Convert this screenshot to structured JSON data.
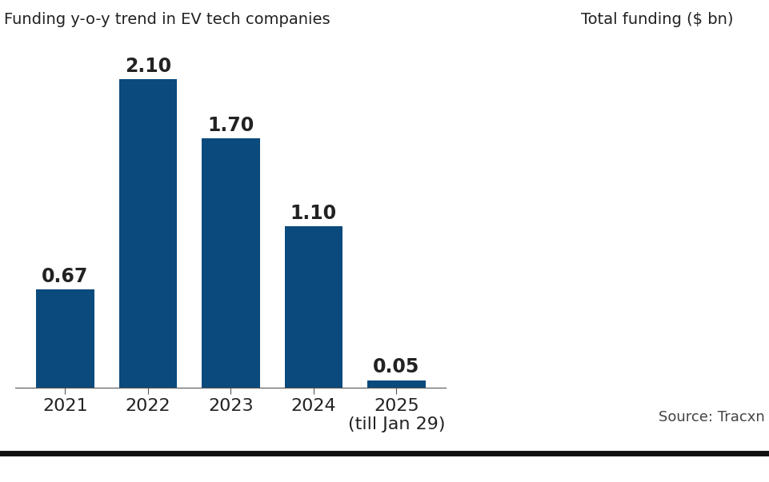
{
  "chart_data": {
    "type": "bar",
    "title": "Funding y-o-y trend in EV tech companies",
    "subtitle": "Total funding ($ bn)",
    "source": "Source: Tracxn",
    "categories": [
      "2021",
      "2022",
      "2023",
      "2024",
      "2025\n(till Jan 29)"
    ],
    "values": [
      0.67,
      2.1,
      1.7,
      1.1,
      0.05
    ],
    "value_labels": [
      "0.67",
      "2.10",
      "1.70",
      "1.10",
      "0.05"
    ],
    "color": "#0b4a7d",
    "ylim": [
      0,
      2.3
    ],
    "data_labels": true,
    "tick_labels": "x",
    "grid": false
  }
}
